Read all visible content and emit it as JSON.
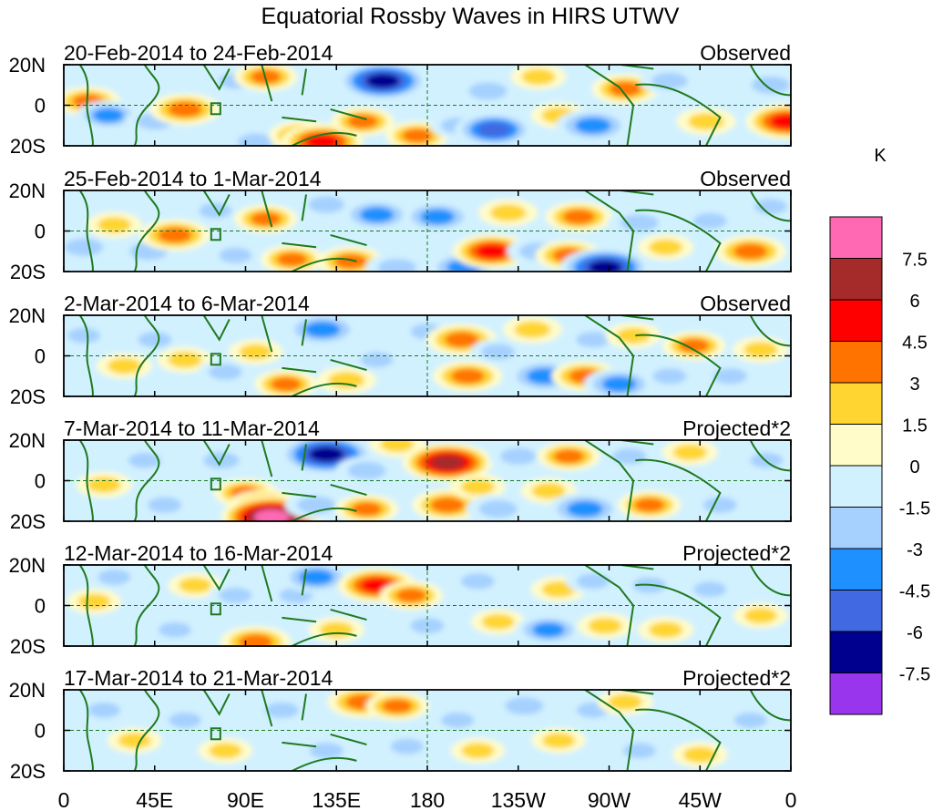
{
  "chart_data": {
    "type": "heatmap",
    "title": "Equatorial Rossby Waves in HIRS UTWV",
    "unit_label": "K",
    "x_ticks": [
      "0",
      "45E",
      "90E",
      "135E",
      "180",
      "135W",
      "90W",
      "45W",
      "0"
    ],
    "x_tick_values": [
      0,
      45,
      90,
      135,
      180,
      225,
      270,
      315,
      360
    ],
    "xlim": [
      0,
      360
    ],
    "y_ticks": [
      "20N",
      "0",
      "20S"
    ],
    "y_tick_values": [
      20,
      0,
      -20
    ],
    "ylim": [
      -20,
      20
    ],
    "colorbar": {
      "colors": [
        "#9a35ee",
        "#00008f",
        "#4169e1",
        "#1e90ff",
        "#a6d1ff",
        "#d2f1ff",
        "#fffcc9",
        "#ffd531",
        "#ff7400",
        "#ff0000",
        "#a52a2a",
        "#ff69b4"
      ],
      "levels": [
        "-7.5",
        "-6",
        "-4.5",
        "-3",
        "-1.5",
        "0",
        "1.5",
        "3",
        "4.5",
        "6",
        "7.5"
      ]
    },
    "panels": [
      {
        "date_range": "20-Feb-2014 to 24-Feb-2014",
        "kind": "Observed",
        "blobs": [
          {
            "lon": 12,
            "lat": 2,
            "v": 3.2
          },
          {
            "lon": 22,
            "lat": -5,
            "v": -3.2
          },
          {
            "lon": 45,
            "lat": -8,
            "v": -2.5
          },
          {
            "lon": 60,
            "lat": -2,
            "v": 4.0
          },
          {
            "lon": 85,
            "lat": 12,
            "v": -2.0
          },
          {
            "lon": 100,
            "lat": 14,
            "v": 3.0
          },
          {
            "lon": 95,
            "lat": -18,
            "v": -2.5
          },
          {
            "lon": 118,
            "lat": -15,
            "v": 3.5
          },
          {
            "lon": 128,
            "lat": -18,
            "v": 5.5
          },
          {
            "lon": 148,
            "lat": -8,
            "v": 3.0
          },
          {
            "lon": 158,
            "lat": 12,
            "v": -6.5
          },
          {
            "lon": 175,
            "lat": -15,
            "v": 3.0
          },
          {
            "lon": 195,
            "lat": -10,
            "v": -2.0
          },
          {
            "lon": 210,
            "lat": 7,
            "v": -3.0
          },
          {
            "lon": 213,
            "lat": -12,
            "v": -5.0
          },
          {
            "lon": 235,
            "lat": 14,
            "v": 2.0
          },
          {
            "lon": 245,
            "lat": -5,
            "v": 2.0
          },
          {
            "lon": 262,
            "lat": -10,
            "v": -4.5
          },
          {
            "lon": 278,
            "lat": 8,
            "v": 3.5
          },
          {
            "lon": 300,
            "lat": 12,
            "v": -2.5
          },
          {
            "lon": 318,
            "lat": -8,
            "v": 2.5
          },
          {
            "lon": 350,
            "lat": 10,
            "v": -3.0
          },
          {
            "lon": 358,
            "lat": -8,
            "v": 5.5
          }
        ]
      },
      {
        "date_range": "25-Feb-2014 to 1-Mar-2014",
        "kind": "Observed",
        "blobs": [
          {
            "lon": 10,
            "lat": -8,
            "v": -3.0
          },
          {
            "lon": 25,
            "lat": 3,
            "v": 2.0
          },
          {
            "lon": 42,
            "lat": -10,
            "v": -3.0
          },
          {
            "lon": 55,
            "lat": -2,
            "v": 4.0
          },
          {
            "lon": 75,
            "lat": 10,
            "v": -1.8
          },
          {
            "lon": 85,
            "lat": -12,
            "v": -1.8
          },
          {
            "lon": 100,
            "lat": 6,
            "v": 3.0
          },
          {
            "lon": 113,
            "lat": -14,
            "v": 3.0
          },
          {
            "lon": 130,
            "lat": 13,
            "v": -2.5
          },
          {
            "lon": 142,
            "lat": -15,
            "v": 3.5
          },
          {
            "lon": 155,
            "lat": 8,
            "v": -4.0
          },
          {
            "lon": 165,
            "lat": -18,
            "v": -3.0
          },
          {
            "lon": 185,
            "lat": 7,
            "v": -4.0
          },
          {
            "lon": 198,
            "lat": -18,
            "v": -4.0
          },
          {
            "lon": 212,
            "lat": -10,
            "v": 5.0
          },
          {
            "lon": 220,
            "lat": 9,
            "v": 2.5
          },
          {
            "lon": 235,
            "lat": -10,
            "v": -3.0
          },
          {
            "lon": 250,
            "lat": -12,
            "v": 3.5
          },
          {
            "lon": 255,
            "lat": 7,
            "v": 3.5
          },
          {
            "lon": 268,
            "lat": -18,
            "v": -6.5
          },
          {
            "lon": 285,
            "lat": 4,
            "v": -3.0
          },
          {
            "lon": 298,
            "lat": -8,
            "v": 2.0
          },
          {
            "lon": 320,
            "lat": 5,
            "v": -2.0
          },
          {
            "lon": 340,
            "lat": -10,
            "v": 4.0
          },
          {
            "lon": 350,
            "lat": 12,
            "v": -1.8
          }
        ]
      },
      {
        "date_range": "2-Mar-2014 to 6-Mar-2014",
        "kind": "Observed",
        "blobs": [
          {
            "lon": 10,
            "lat": 10,
            "v": -1.8
          },
          {
            "lon": 30,
            "lat": -5,
            "v": 2.0
          },
          {
            "lon": 45,
            "lat": 8,
            "v": -2.0
          },
          {
            "lon": 60,
            "lat": -2,
            "v": 2.0
          },
          {
            "lon": 80,
            "lat": -8,
            "v": -2.0
          },
          {
            "lon": 95,
            "lat": 2,
            "v": 1.8
          },
          {
            "lon": 110,
            "lat": -14,
            "v": 3.0
          },
          {
            "lon": 128,
            "lat": 13,
            "v": -4.5
          },
          {
            "lon": 140,
            "lat": -12,
            "v": 2.5
          },
          {
            "lon": 155,
            "lat": -2,
            "v": -1.8
          },
          {
            "lon": 180,
            "lat": 12,
            "v": -2.0
          },
          {
            "lon": 197,
            "lat": 8,
            "v": 4.0
          },
          {
            "lon": 200,
            "lat": -10,
            "v": 3.8
          },
          {
            "lon": 215,
            "lat": 2,
            "v": -2.0
          },
          {
            "lon": 232,
            "lat": 13,
            "v": 2.5
          },
          {
            "lon": 238,
            "lat": -10,
            "v": -4.5
          },
          {
            "lon": 258,
            "lat": -10,
            "v": 3.5
          },
          {
            "lon": 262,
            "lat": 8,
            "v": -2.0
          },
          {
            "lon": 275,
            "lat": -14,
            "v": -4.0
          },
          {
            "lon": 282,
            "lat": 10,
            "v": 2.0
          },
          {
            "lon": 300,
            "lat": -10,
            "v": -2.0
          },
          {
            "lon": 312,
            "lat": 5,
            "v": 3.0
          },
          {
            "lon": 330,
            "lat": -10,
            "v": -2.0
          },
          {
            "lon": 345,
            "lat": 3,
            "v": 2.0
          }
        ]
      },
      {
        "date_range": "7-Mar-2014 to 11-Mar-2014",
        "kind": "Projected*2",
        "blobs": [
          {
            "lon": 20,
            "lat": -2,
            "v": 2.0
          },
          {
            "lon": 40,
            "lat": 10,
            "v": -1.8
          },
          {
            "lon": 50,
            "lat": -12,
            "v": -2.0
          },
          {
            "lon": 78,
            "lat": 10,
            "v": -2.5
          },
          {
            "lon": 90,
            "lat": -6,
            "v": 3.0
          },
          {
            "lon": 100,
            "lat": -13,
            "v": 5.0
          },
          {
            "lon": 103,
            "lat": -18,
            "v": 8.0
          },
          {
            "lon": 125,
            "lat": -12,
            "v": -3.0
          },
          {
            "lon": 130,
            "lat": 13,
            "v": -7.0
          },
          {
            "lon": 150,
            "lat": 5,
            "v": -3.0
          },
          {
            "lon": 150,
            "lat": -14,
            "v": 3.0
          },
          {
            "lon": 165,
            "lat": 18,
            "v": 2.0
          },
          {
            "lon": 190,
            "lat": 9,
            "v": 6.5
          },
          {
            "lon": 190,
            "lat": -12,
            "v": 4.0
          },
          {
            "lon": 205,
            "lat": -3,
            "v": 2.0
          },
          {
            "lon": 215,
            "lat": -14,
            "v": -3.0
          },
          {
            "lon": 225,
            "lat": 12,
            "v": -2.5
          },
          {
            "lon": 240,
            "lat": -5,
            "v": 2.0
          },
          {
            "lon": 250,
            "lat": 12,
            "v": 3.0
          },
          {
            "lon": 258,
            "lat": -14,
            "v": -4.5
          },
          {
            "lon": 280,
            "lat": 12,
            "v": -2.0
          },
          {
            "lon": 290,
            "lat": -12,
            "v": 3.0
          },
          {
            "lon": 310,
            "lat": 14,
            "v": 2.0
          },
          {
            "lon": 325,
            "lat": -12,
            "v": -2.0
          },
          {
            "lon": 348,
            "lat": 10,
            "v": -1.8
          }
        ]
      },
      {
        "date_range": "12-Mar-2014 to 16-Mar-2014",
        "kind": "Projected*2",
        "blobs": [
          {
            "lon": 15,
            "lat": 2,
            "v": 1.8
          },
          {
            "lon": 25,
            "lat": 14,
            "v": -1.8
          },
          {
            "lon": 55,
            "lat": -12,
            "v": -1.8
          },
          {
            "lon": 65,
            "lat": 10,
            "v": 1.8
          },
          {
            "lon": 85,
            "lat": 5,
            "v": -1.8
          },
          {
            "lon": 95,
            "lat": -18,
            "v": 4.0
          },
          {
            "lon": 115,
            "lat": 5,
            "v": -2.0
          },
          {
            "lon": 125,
            "lat": 14,
            "v": -4.0
          },
          {
            "lon": 135,
            "lat": -12,
            "v": 2.0
          },
          {
            "lon": 155,
            "lat": 10,
            "v": 5.0
          },
          {
            "lon": 172,
            "lat": 5,
            "v": 3.0
          },
          {
            "lon": 180,
            "lat": -10,
            "v": -2.0
          },
          {
            "lon": 205,
            "lat": 12,
            "v": -2.0
          },
          {
            "lon": 215,
            "lat": -8,
            "v": 1.8
          },
          {
            "lon": 240,
            "lat": -12,
            "v": -3.5
          },
          {
            "lon": 245,
            "lat": 8,
            "v": 2.0
          },
          {
            "lon": 262,
            "lat": 12,
            "v": -1.8
          },
          {
            "lon": 268,
            "lat": -10,
            "v": 2.0
          },
          {
            "lon": 290,
            "lat": 10,
            "v": -2.0
          },
          {
            "lon": 298,
            "lat": -12,
            "v": 2.0
          },
          {
            "lon": 320,
            "lat": 8,
            "v": -1.8
          },
          {
            "lon": 345,
            "lat": -5,
            "v": 1.8
          }
        ]
      },
      {
        "date_range": "17-Mar-2014 to 21-Mar-2014",
        "kind": "Projected*2",
        "blobs": [
          {
            "lon": 20,
            "lat": 10,
            "v": -1.8
          },
          {
            "lon": 35,
            "lat": -5,
            "v": 1.8
          },
          {
            "lon": 60,
            "lat": 5,
            "v": -1.8
          },
          {
            "lon": 80,
            "lat": -10,
            "v": 1.8
          },
          {
            "lon": 108,
            "lat": 10,
            "v": -2.0
          },
          {
            "lon": 130,
            "lat": -10,
            "v": -2.0
          },
          {
            "lon": 148,
            "lat": 14,
            "v": 4.0
          },
          {
            "lon": 165,
            "lat": 12,
            "v": 3.0
          },
          {
            "lon": 170,
            "lat": -8,
            "v": -1.8
          },
          {
            "lon": 195,
            "lat": 5,
            "v": -1.8
          },
          {
            "lon": 205,
            "lat": -10,
            "v": 1.8
          },
          {
            "lon": 228,
            "lat": 12,
            "v": -3.0
          },
          {
            "lon": 245,
            "lat": -5,
            "v": 1.8
          },
          {
            "lon": 262,
            "lat": 10,
            "v": -1.8
          },
          {
            "lon": 278,
            "lat": 14,
            "v": 2.0
          },
          {
            "lon": 285,
            "lat": -10,
            "v": -1.8
          },
          {
            "lon": 315,
            "lat": -12,
            "v": 2.0
          },
          {
            "lon": 340,
            "lat": 5,
            "v": -1.8
          }
        ]
      }
    ]
  }
}
